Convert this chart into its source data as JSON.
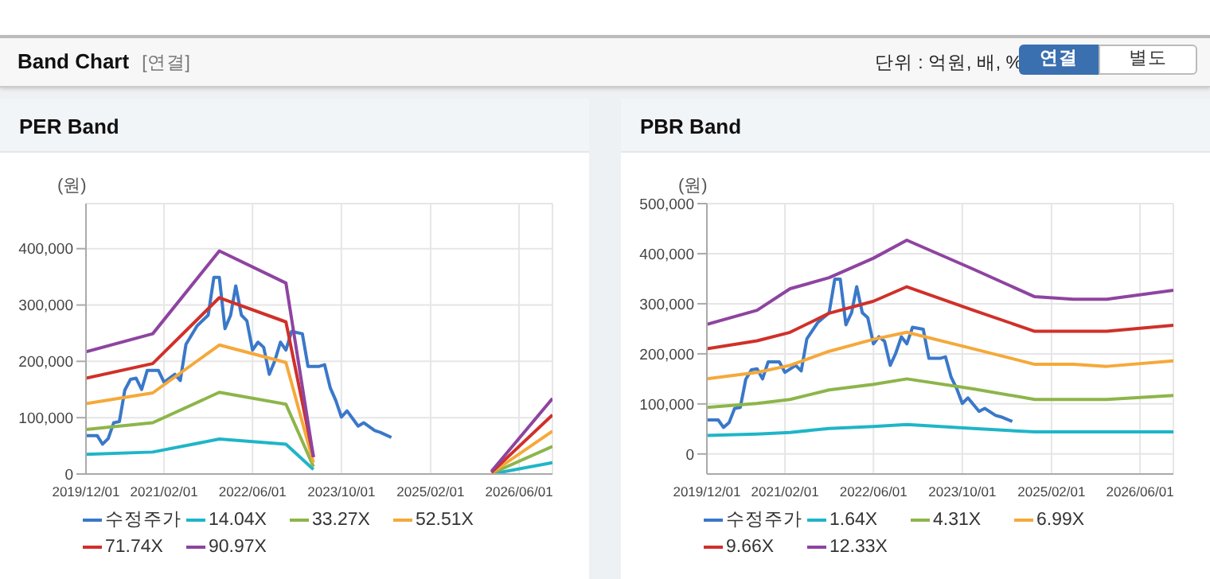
{
  "chart_data": [
    {
      "type": "other",
      "title": "Band Chart",
      "annotations": [
        "[연결]",
        "단위 : 억원, 배, %",
        "연결",
        "별도"
      ]
    },
    {
      "type": "line",
      "title": "PER Band",
      "ylabel": "(원)",
      "xlim": [
        "2019-12-01",
        "2026-12-01"
      ],
      "xticks": [
        {
          "value": "2019-12-01",
          "label": "2019/12/01"
        },
        {
          "value": "2021-02-01",
          "label": "2021/02/01"
        },
        {
          "value": "2022-06-01",
          "label": "2022/06/01"
        },
        {
          "value": "2023-10-01",
          "label": "2023/10/01"
        },
        {
          "value": "2025-02-01",
          "label": "2025/02/01"
        },
        {
          "value": "2026-06-01",
          "label": "2026/06/01"
        }
      ],
      "ylim": [
        0,
        480000
      ],
      "yticks": [
        0,
        {
          "value": 100000,
          "label": "100,000"
        },
        {
          "value": 200000,
          "label": "200,000"
        },
        {
          "value": 300000,
          "label": "300,000"
        },
        {
          "value": 400000,
          "label": "400,000"
        }
      ],
      "grid": true,
      "legend": "bottom",
      "marker": "none",
      "line_style": "solid",
      "series": [
        {
          "name": "수정주가",
          "color": "#3a78c9",
          "x": [
            "2019-12",
            "2020-02",
            "2020-03",
            "2020-04",
            "2020-05",
            "2020-06",
            "2020-07",
            "2020-08",
            "2020-09",
            "2020-10",
            "2020-11",
            "2021-01",
            "2021-02",
            "2021-04",
            "2021-05",
            "2021-06",
            "2021-08",
            "2021-10",
            "2021-11",
            "2021-12",
            "2022-01",
            "2022-02",
            "2022-03",
            "2022-04",
            "2022-05",
            "2022-06",
            "2022-07",
            "2022-08",
            "2022-09",
            "2022-10",
            "2022-11",
            "2022-12",
            "2023-01",
            "2023-03",
            "2023-04",
            "2023-06",
            "2023-07",
            "2023-08",
            "2023-09",
            "2023-10",
            "2023-11",
            "2024-01",
            "2024-02",
            "2024-04",
            "2024-05",
            "2024-07"
          ],
          "values": [
            68000,
            68000,
            53000,
            63000,
            91000,
            93000,
            149000,
            168000,
            170000,
            150000,
            184000,
            184000,
            163000,
            177000,
            166000,
            230000,
            263000,
            282000,
            349000,
            349000,
            258000,
            282000,
            334000,
            282000,
            272000,
            220000,
            234000,
            225000,
            177000,
            201000,
            234000,
            220000,
            253000,
            249000,
            191000,
            191000,
            194000,
            153000,
            130000,
            101000,
            112000,
            85000,
            91000,
            77000,
            74000,
            65000
          ]
        },
        {
          "name": "14.04X",
          "color": "#1fb5c8",
          "x": [
            "2019-12",
            "2020-12",
            "2021-12",
            "2022-12",
            "2023-05",
            "2023-06",
            "2026-01",
            "2026-12"
          ],
          "values": [
            35000,
            39000,
            62000,
            53000,
            8000,
            null,
            0,
            20000
          ]
        },
        {
          "name": "33.27X",
          "color": "#8db54a",
          "x": [
            "2019-12",
            "2020-12",
            "2021-12",
            "2022-12",
            "2023-05",
            "2023-06",
            "2026-01",
            "2026-12"
          ],
          "values": [
            79000,
            91000,
            145000,
            124000,
            13000,
            null,
            1000,
            49000
          ]
        },
        {
          "name": "52.51X",
          "color": "#f5a93a",
          "x": [
            "2019-12",
            "2020-12",
            "2021-12",
            "2022-12",
            "2023-05",
            "2023-06",
            "2026-01",
            "2026-12"
          ],
          "values": [
            125000,
            144000,
            229000,
            198000,
            20000,
            null,
            2000,
            76000
          ]
        },
        {
          "name": "71.74X",
          "color": "#d0302a",
          "x": [
            "2019-12",
            "2020-12",
            "2021-12",
            "2022-12",
            "2023-05",
            "2023-06",
            "2026-01",
            "2026-12"
          ],
          "values": [
            170000,
            196000,
            313000,
            270000,
            30000,
            null,
            3000,
            105000
          ]
        },
        {
          "name": "90.97X",
          "color": "#8e44a0",
          "x": [
            "2019-12",
            "2020-12",
            "2021-12",
            "2022-12",
            "2023-05",
            "2023-06",
            "2026-01",
            "2026-12"
          ],
          "values": [
            217000,
            249000,
            396000,
            339000,
            30000,
            null,
            5000,
            134000
          ]
        }
      ]
    },
    {
      "type": "line",
      "title": "PBR Band",
      "ylabel": "(원)",
      "xlim": [
        "2019-12-01",
        "2026-12-01"
      ],
      "xticks": [
        {
          "value": "2019-12-01",
          "label": "2019/12/01"
        },
        {
          "value": "2021-02-01",
          "label": "2021/02/01"
        },
        {
          "value": "2022-06-01",
          "label": "2022/06/01"
        },
        {
          "value": "2023-10-01",
          "label": "2023/10/01"
        },
        {
          "value": "2025-02-01",
          "label": "2025/02/01"
        },
        {
          "value": "2026-06-01",
          "label": "2026/06/01"
        }
      ],
      "ylim": [
        -40000,
        500000
      ],
      "yticks": [
        0,
        {
          "value": 100000,
          "label": "100,000"
        },
        {
          "value": 200000,
          "label": "200,000"
        },
        {
          "value": 300000,
          "label": "300,000"
        },
        {
          "value": 400000,
          "label": "400,000"
        },
        {
          "value": 500000,
          "label": "500,000"
        }
      ],
      "grid": true,
      "legend": "bottom",
      "marker": "none",
      "line_style": "solid",
      "series": [
        {
          "name": "수정주가",
          "color": "#3a78c9",
          "x": [
            "2019-12",
            "2020-02",
            "2020-03",
            "2020-04",
            "2020-05",
            "2020-06",
            "2020-07",
            "2020-08",
            "2020-09",
            "2020-10",
            "2020-11",
            "2021-01",
            "2021-02",
            "2021-04",
            "2021-05",
            "2021-06",
            "2021-08",
            "2021-10",
            "2021-11",
            "2021-12",
            "2022-01",
            "2022-02",
            "2022-03",
            "2022-04",
            "2022-05",
            "2022-06",
            "2022-07",
            "2022-08",
            "2022-09",
            "2022-10",
            "2022-11",
            "2022-12",
            "2023-01",
            "2023-03",
            "2023-04",
            "2023-06",
            "2023-07",
            "2023-08",
            "2023-09",
            "2023-10",
            "2023-11",
            "2024-01",
            "2024-02",
            "2024-04",
            "2024-05",
            "2024-07"
          ],
          "values": [
            68000,
            68000,
            53000,
            63000,
            91000,
            93000,
            149000,
            168000,
            170000,
            150000,
            184000,
            184000,
            163000,
            177000,
            166000,
            230000,
            263000,
            282000,
            349000,
            349000,
            258000,
            282000,
            334000,
            282000,
            272000,
            220000,
            234000,
            225000,
            177000,
            201000,
            234000,
            220000,
            253000,
            249000,
            191000,
            191000,
            194000,
            153000,
            130000,
            101000,
            112000,
            85000,
            91000,
            77000,
            74000,
            65000
          ]
        },
        {
          "name": "1.64X",
          "color": "#1fb5c8",
          "x": [
            "2019-12",
            "2020-09",
            "2021-03",
            "2021-10",
            "2022-06",
            "2022-12",
            "2023-12",
            "2024-11",
            "2025-06",
            "2025-12",
            "2026-12"
          ],
          "values": [
            37000,
            40000,
            43000,
            51000,
            55000,
            59000,
            51000,
            44000,
            44000,
            44000,
            44000
          ]
        },
        {
          "name": "4.31X",
          "color": "#8db54a",
          "x": [
            "2019-12",
            "2020-09",
            "2021-03",
            "2021-10",
            "2022-06",
            "2022-12",
            "2023-12",
            "2024-11",
            "2025-06",
            "2025-12",
            "2026-12"
          ],
          "values": [
            93000,
            101000,
            109000,
            128000,
            139000,
            150000,
            130000,
            109000,
            109000,
            109000,
            117000
          ]
        },
        {
          "name": "6.99X",
          "color": "#f5a93a",
          "x": [
            "2019-12",
            "2020-09",
            "2021-03",
            "2021-10",
            "2022-06",
            "2022-12",
            "2023-12",
            "2024-11",
            "2025-06",
            "2025-12",
            "2026-12"
          ],
          "values": [
            150000,
            163000,
            177000,
            205000,
            229000,
            243000,
            210000,
            179000,
            179000,
            175000,
            186000
          ]
        },
        {
          "name": "9.66X",
          "color": "#d0302a",
          "x": [
            "2019-12",
            "2020-09",
            "2021-03",
            "2021-10",
            "2022-06",
            "2022-12",
            "2023-12",
            "2024-11",
            "2025-06",
            "2025-12",
            "2026-12"
          ],
          "values": [
            210000,
            226000,
            243000,
            281000,
            305000,
            334000,
            287000,
            245000,
            245000,
            245000,
            257000
          ]
        },
        {
          "name": "12.33X",
          "color": "#8e44a0",
          "x": [
            "2019-12",
            "2020-09",
            "2021-03",
            "2021-10",
            "2022-06",
            "2022-12",
            "2023-12",
            "2024-11",
            "2025-06",
            "2025-12",
            "2026-12"
          ],
          "values": [
            259000,
            287000,
            330000,
            352000,
            391000,
            427000,
            369000,
            314000,
            309000,
            309000,
            327000
          ]
        }
      ]
    }
  ]
}
